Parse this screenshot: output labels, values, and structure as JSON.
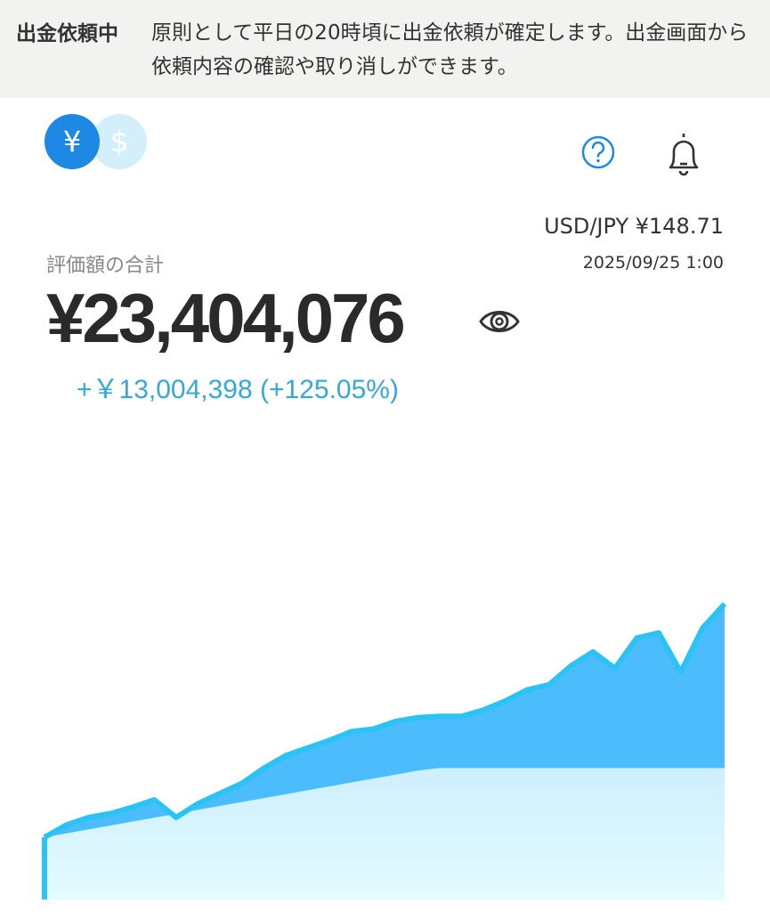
{
  "banner": {
    "title": "出金依頼中",
    "message": "原則として平日の20時頃に出金依頼が確定します。出金画面から依頼内容の確認や取り消しができます。"
  },
  "header": {
    "currency_jpy_symbol": "¥",
    "currency_usd_symbol": "$",
    "icons": [
      "yen-coin-icon",
      "dollar-coin-icon",
      "help-icon",
      "bell-icon",
      "eye-icon"
    ]
  },
  "rate": {
    "text": "USD/JPY ¥148.71",
    "timestamp": "2025/09/25 1:00"
  },
  "summary": {
    "label": "評価額の合計",
    "total": "¥23,404,076",
    "gain": "+￥13,004,398 (+125.05%)"
  },
  "colors": {
    "accent": "#1e88e5",
    "gain": "#35a8d8",
    "valuation_fill": "#4bbdfc",
    "principal_fill": "#d6f3fd",
    "line": "#29c4f5"
  },
  "chart_data": {
    "type": "area",
    "unit": "JPY (millions, estimated)",
    "series": [
      {
        "values": [
          4.93,
          5.9,
          6.5,
          6.8,
          7.3,
          7.9,
          6.5,
          7.6,
          8.4,
          9.2,
          10.4,
          11.4,
          12.0,
          12.6,
          13.3,
          13.5,
          14.1,
          14.4,
          14.5,
          14.5,
          15.0,
          15.7,
          16.6,
          17.0,
          18.5,
          19.6,
          18.3,
          20.7,
          21.1,
          18.0,
          21.5,
          23.4
        ]
      },
      {
        "values": [
          4.93,
          5.24,
          5.55,
          5.86,
          6.17,
          6.48,
          6.79,
          7.1,
          7.41,
          7.72,
          8.03,
          8.34,
          8.65,
          8.96,
          9.27,
          9.58,
          9.89,
          10.2,
          10.4,
          10.4,
          10.4,
          10.4,
          10.4,
          10.4,
          10.4,
          10.4,
          10.4,
          10.4,
          10.4,
          10.4,
          10.4,
          10.4
        ]
      }
    ],
    "ylim": [
      0,
      23.4
    ],
    "grid": false,
    "legend": "none"
  }
}
